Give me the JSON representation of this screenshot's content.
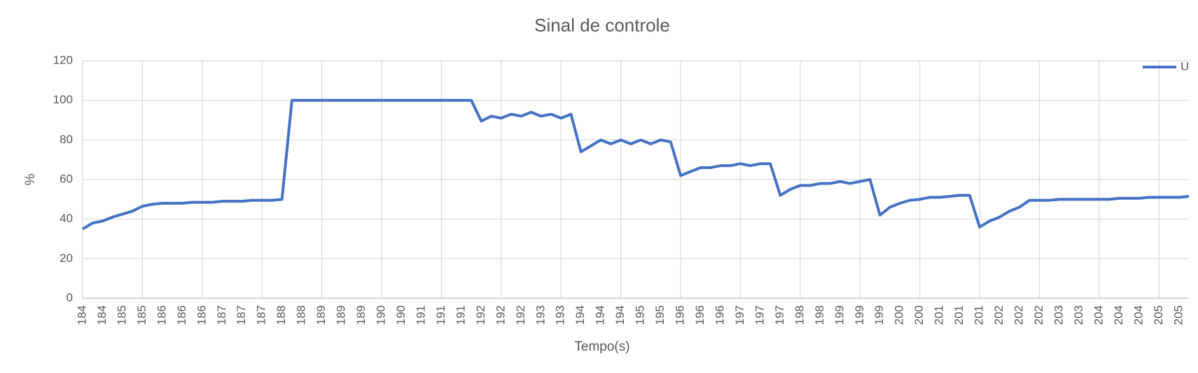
{
  "chart_data": {
    "type": "line",
    "title": "Sinal de controle",
    "x_label": "Tempo(s)",
    "y_label": "%",
    "categories": [
      "184",
      null,
      "184",
      null,
      "185",
      null,
      "185",
      null,
      "186",
      null,
      "186",
      null,
      "186",
      null,
      "187",
      null,
      "187",
      null,
      "187",
      null,
      "188",
      null,
      "188",
      null,
      "189",
      null,
      "189",
      null,
      "189",
      null,
      "190",
      null,
      "190",
      null,
      "191",
      null,
      "191",
      null,
      "191",
      null,
      "192",
      null,
      "192",
      null,
      "192",
      null,
      "193",
      null,
      "193",
      null,
      "194",
      null,
      "194",
      null,
      "194",
      null,
      "195",
      null,
      "195",
      null,
      "196",
      null,
      "196",
      null,
      "196",
      null,
      "197",
      null,
      "197",
      null,
      "197",
      null,
      "198",
      null,
      "198",
      null,
      "199",
      null,
      "199",
      null,
      "199",
      null,
      "200",
      null,
      "200",
      null,
      "201",
      null,
      "201",
      null,
      "201",
      null,
      "202",
      null,
      "202",
      null,
      "202",
      null,
      "203",
      null,
      "203",
      null,
      "204",
      null,
      "204",
      null,
      "204",
      null,
      "205",
      null,
      "205",
      null
    ],
    "series": [
      {
        "name": "U",
        "color": "#4472c4",
        "values": [
          35,
          38,
          39,
          41,
          42.5,
          44,
          46.5,
          47.5,
          48,
          48,
          48,
          48.5,
          48.5,
          48.5,
          49,
          49,
          49,
          49.5,
          49.5,
          49.5,
          50,
          100,
          100,
          100,
          100,
          100,
          100,
          100,
          100,
          100,
          100,
          100,
          100,
          100,
          100,
          100,
          100,
          100,
          100,
          100,
          89.5,
          92,
          91,
          93,
          92,
          94,
          92,
          93,
          91,
          93,
          74,
          77,
          80,
          78,
          80,
          78,
          80,
          78,
          80,
          79,
          62,
          64,
          66,
          66,
          67,
          67,
          68,
          67,
          68,
          68,
          52,
          55,
          57,
          57,
          58,
          58,
          59,
          58,
          59,
          60,
          42,
          46,
          48,
          49.5,
          50,
          51,
          51,
          51.5,
          52,
          52,
          36,
          39,
          41,
          44,
          46,
          49.5,
          49.5,
          49.5,
          50,
          50,
          50,
          50,
          50,
          50,
          50.5,
          50.5,
          50.5,
          51,
          51,
          51,
          51,
          51.5
        ]
      }
    ],
    "ylim": [
      0,
      120
    ],
    "yticks": [
      0,
      20,
      40,
      60,
      80,
      100,
      120
    ],
    "grid": true,
    "legend": "top-right"
  }
}
